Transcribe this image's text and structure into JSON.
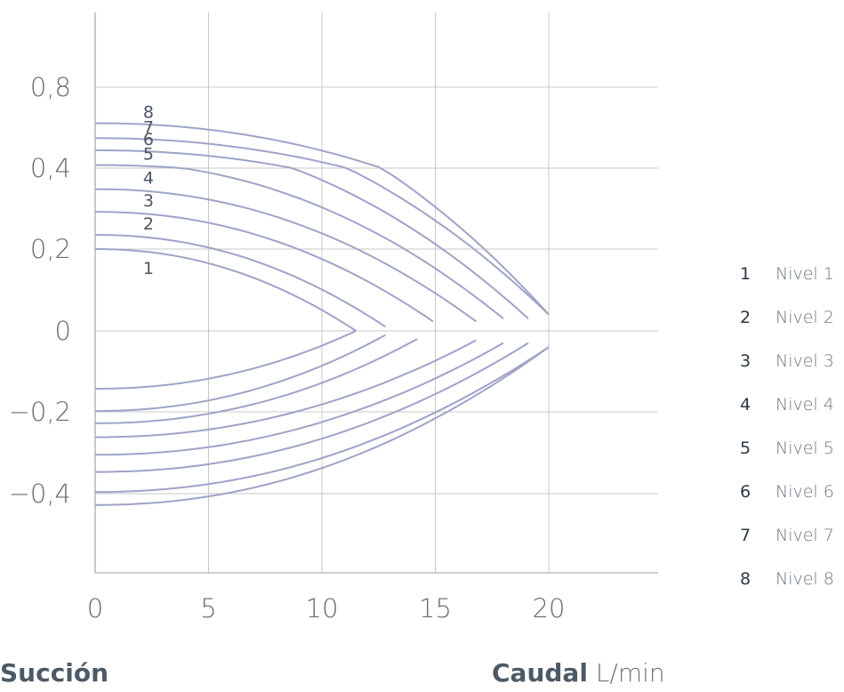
{
  "colors": {
    "curve": "#9ea4c7",
    "grid": "#c8c8c8",
    "axis": "#b0b0b0",
    "text": "#4d5a66"
  },
  "footer": {
    "left_label": "Succión",
    "right_label_bold": "Caudal",
    "right_label_unit": "L/min"
  },
  "legend": [
    {
      "num": "1",
      "label": "Nivel 1"
    },
    {
      "num": "2",
      "label": "Nivel 2"
    },
    {
      "num": "3",
      "label": "Nivel 3"
    },
    {
      "num": "4",
      "label": "Nivel 4"
    },
    {
      "num": "5",
      "label": "Nivel 5"
    },
    {
      "num": "6",
      "label": "Nivel 6"
    },
    {
      "num": "7",
      "label": "Nivel 7"
    },
    {
      "num": "8",
      "label": "Nivel 8"
    }
  ],
  "chart_data": {
    "type": "line",
    "xlim": [
      0,
      25
    ],
    "ylim": [
      -0.6,
      0.9
    ],
    "x_ticks": [
      0,
      5,
      10,
      15,
      20
    ],
    "x_tick_labels": [
      "0",
      "5",
      "10",
      "15",
      "20"
    ],
    "y_ticks": [
      0.8,
      0.4,
      0.2,
      0,
      -0.2,
      -0.4
    ],
    "y_tick_labels": [
      "0,8",
      "0,4",
      "0,2",
      "0",
      "−0,2",
      "−0,4"
    ],
    "grid": true,
    "series": [
      {
        "name": "1",
        "upper": {
          "y0": 0.2,
          "x_end": 11.5,
          "y_end": 0.0
        },
        "lower": {
          "y0": -0.143,
          "x_end": 11.5,
          "y_end": 0.0
        }
      },
      {
        "name": "2",
        "upper": {
          "y0": 0.235,
          "x_end": 12.8,
          "y_end": 0.01
        },
        "lower": {
          "y0": -0.198,
          "x_end": 12.8,
          "y_end": -0.01
        }
      },
      {
        "name": "3",
        "upper": {
          "y0": 0.292,
          "x_end": 14.9,
          "y_end": 0.023
        },
        "lower": {
          "y0": -0.228,
          "x_end": 14.2,
          "y_end": -0.02
        }
      },
      {
        "name": "4",
        "upper": {
          "y0": 0.348,
          "x_end": 16.8,
          "y_end": 0.023
        },
        "lower": {
          "y0": -0.262,
          "x_end": 16.8,
          "y_end": -0.023
        }
      },
      {
        "name": "5",
        "upper": {
          "y0": 0.415,
          "x_end": 18.0,
          "y_end": 0.03
        },
        "lower": {
          "y0": -0.305,
          "x_end": 18.0,
          "y_end": -0.03
        }
      },
      {
        "name": "6",
        "upper": {
          "y0": 0.488,
          "x_end": 19.1,
          "y_end": 0.03
        },
        "lower": {
          "y0": -0.347,
          "x_end": 19.1,
          "y_end": -0.03
        }
      },
      {
        "name": "7",
        "upper": {
          "y0": 0.548,
          "x_end": 20.0,
          "y_end": 0.04
        },
        "lower": {
          "y0": -0.396,
          "x_end": 20.0,
          "y_end": -0.04
        }
      },
      {
        "name": "8",
        "upper": {
          "y0": 0.622,
          "x_end": 20.0,
          "y_end": 0.04
        },
        "lower": {
          "y0": -0.428,
          "x_end": 20.0,
          "y_end": -0.04
        }
      }
    ]
  }
}
